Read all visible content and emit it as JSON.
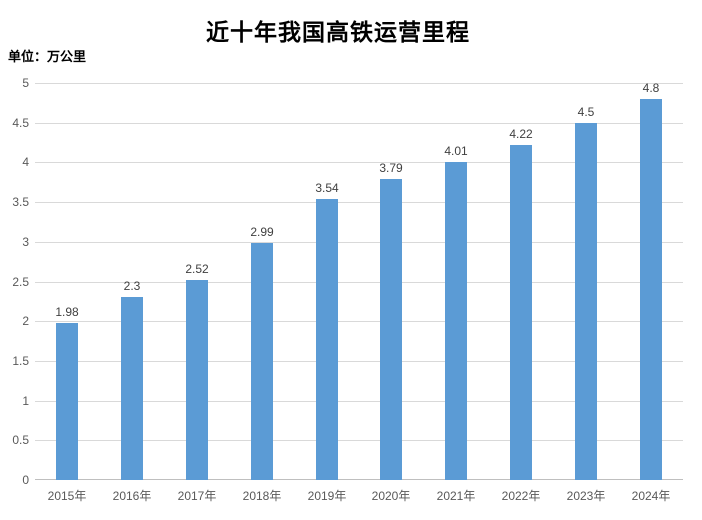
{
  "chart_data": {
    "type": "bar",
    "title": "近十年我国高铁运营里程",
    "unit_label": "单位：万公里",
    "categories": [
      "2015年",
      "2016年",
      "2017年",
      "2018年",
      "2019年",
      "2020年",
      "2021年",
      "2022年",
      "2023年",
      "2024年"
    ],
    "values": [
      1.98,
      2.3,
      2.52,
      2.99,
      3.54,
      3.79,
      4.01,
      4.22,
      4.5,
      4.8
    ],
    "data_labels": [
      "1.98",
      "2.3",
      "2.52",
      "2.99",
      "3.54",
      "3.79",
      "4.01",
      "4.22",
      "4.5",
      "4.8"
    ],
    "xlabel": "",
    "ylabel": "",
    "ylim": [
      0,
      5
    ],
    "ytick_step": 0.5,
    "ytick_labels": [
      "0",
      "0.5",
      "1",
      "1.5",
      "2",
      "2.5",
      "3",
      "3.5",
      "4",
      "4.5",
      "5"
    ],
    "grid": true,
    "legend": false,
    "colors": {
      "bar": "#5B9BD5",
      "gridline": "#D9D9D9",
      "axis_line": "#BFBFBF",
      "tick_label": "#595959",
      "data_label": "#404040",
      "title": "#000000"
    }
  }
}
